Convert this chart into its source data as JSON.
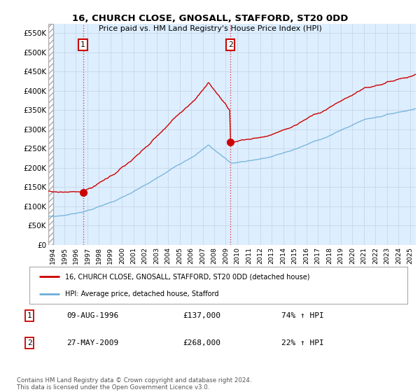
{
  "title": "16, CHURCH CLOSE, GNOSALL, STAFFORD, ST20 0DD",
  "subtitle": "Price paid vs. HM Land Registry's House Price Index (HPI)",
  "ylabel_ticks": [
    "£0",
    "£50K",
    "£100K",
    "£150K",
    "£200K",
    "£250K",
    "£300K",
    "£350K",
    "£400K",
    "£450K",
    "£500K",
    "£550K"
  ],
  "ytick_values": [
    0,
    50000,
    100000,
    150000,
    200000,
    250000,
    300000,
    350000,
    400000,
    450000,
    500000,
    550000
  ],
  "ylim": [
    0,
    575000
  ],
  "xlim_start": 1993.6,
  "xlim_end": 2025.5,
  "sale1_date": 1996.61,
  "sale1_price": 137000,
  "sale2_date": 2009.41,
  "sale2_price": 268000,
  "hpi_color": "#6baed6",
  "price_color": "#cc0000",
  "grid_color": "#c8d8e8",
  "background_color": "#ffffff",
  "plot_bg_color": "#ddeeff",
  "hatch_bg_color": "#ffffff",
  "legend_label1": "16, CHURCH CLOSE, GNOSALL, STAFFORD, ST20 0DD (detached house)",
  "legend_label2": "HPI: Average price, detached house, Stafford",
  "table_row1": [
    "1",
    "09-AUG-1996",
    "£137,000",
    "74% ↑ HPI"
  ],
  "table_row2": [
    "2",
    "27-MAY-2009",
    "£268,000",
    "22% ↑ HPI"
  ],
  "footnote": "Contains HM Land Registry data © Crown copyright and database right 2024.\nThis data is licensed under the Open Government Licence v3.0.",
  "xtick_years": [
    1994,
    1995,
    1996,
    1997,
    1998,
    1999,
    2000,
    2001,
    2002,
    2003,
    2004,
    2005,
    2006,
    2007,
    2008,
    2009,
    2010,
    2011,
    2012,
    2013,
    2014,
    2015,
    2016,
    2017,
    2018,
    2019,
    2020,
    2021,
    2022,
    2023,
    2024,
    2025
  ]
}
